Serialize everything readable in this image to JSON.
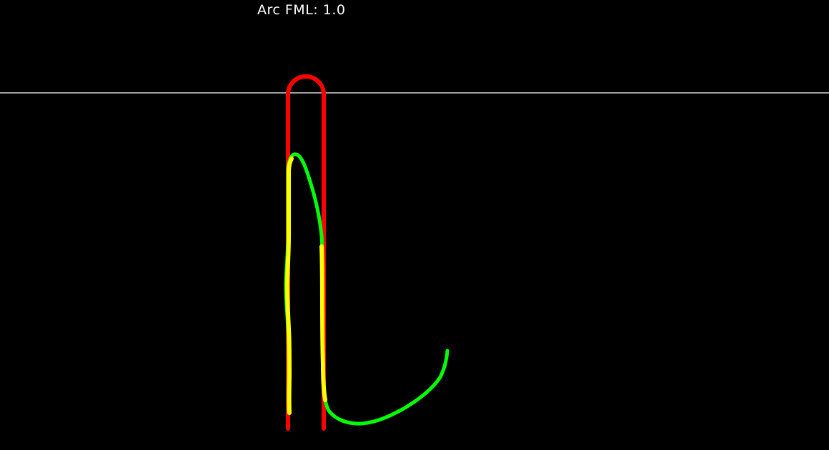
{
  "metric": {
    "label": "Arc FML: 1.0"
  },
  "colors": {
    "background": "#000000",
    "text": "#ffffff",
    "reference_line": "#ffffff",
    "template_stroke": "#ff0000",
    "trace_overlap": "#ffff00",
    "trace_other": "#00ff00"
  }
}
